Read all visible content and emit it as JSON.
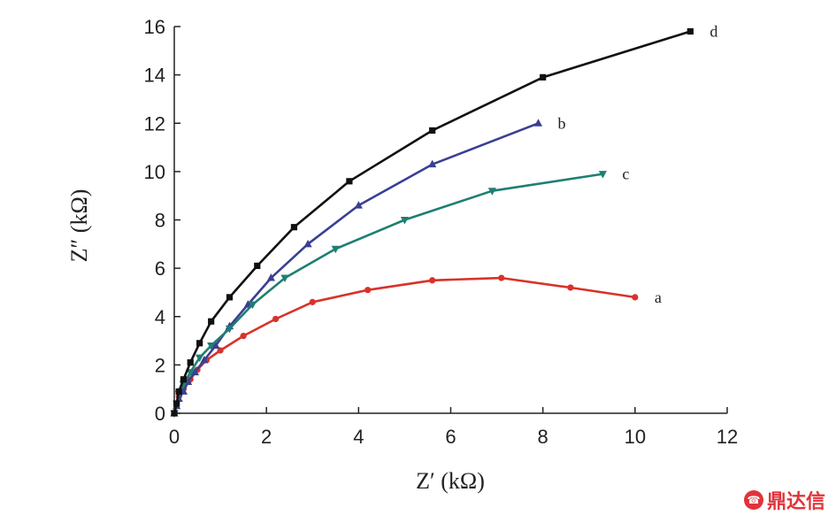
{
  "chart_data": {
    "type": "line",
    "xlabel": "Z′ (kΩ)",
    "ylabel": "Z″ (kΩ)",
    "xlim": [
      0,
      12
    ],
    "ylim": [
      0,
      16
    ],
    "xticks": [
      0,
      2,
      4,
      6,
      8,
      10,
      12
    ],
    "yticks": [
      0,
      2,
      4,
      6,
      8,
      10,
      12,
      14,
      16
    ],
    "grid": false,
    "series": [
      {
        "name": "a",
        "color": "#d8322a",
        "marker": "circle",
        "x": [
          0,
          0.05,
          0.1,
          0.2,
          0.35,
          0.5,
          0.7,
          1.0,
          1.5,
          2.2,
          3.0,
          4.2,
          5.6,
          7.1,
          8.6,
          10.0
        ],
        "y": [
          0,
          0.4,
          0.7,
          1.0,
          1.4,
          1.8,
          2.2,
          2.6,
          3.2,
          3.9,
          4.6,
          5.1,
          5.5,
          5.6,
          5.2,
          4.8
        ]
      },
      {
        "name": "b",
        "color": "#3a3f93",
        "marker": "triangle-up",
        "x": [
          0,
          0.05,
          0.1,
          0.2,
          0.3,
          0.45,
          0.65,
          0.9,
          1.2,
          1.6,
          2.1,
          2.9,
          4.0,
          5.6,
          7.9
        ],
        "y": [
          0,
          0.3,
          0.6,
          0.9,
          1.3,
          1.7,
          2.2,
          2.8,
          3.6,
          4.5,
          5.6,
          7.0,
          8.6,
          10.3,
          12.0
        ]
      },
      {
        "name": "c",
        "color": "#1e7f72",
        "marker": "triangle-down",
        "x": [
          0,
          0.05,
          0.1,
          0.2,
          0.35,
          0.55,
          0.8,
          1.2,
          1.7,
          2.4,
          3.5,
          5.0,
          6.9,
          9.3
        ],
        "y": [
          0,
          0.4,
          0.8,
          1.2,
          1.7,
          2.3,
          2.8,
          3.5,
          4.5,
          5.6,
          6.8,
          8.0,
          9.2,
          9.9
        ]
      },
      {
        "name": "d",
        "color": "#111111",
        "marker": "square",
        "x": [
          0,
          0.05,
          0.1,
          0.2,
          0.35,
          0.55,
          0.8,
          1.2,
          1.8,
          2.6,
          3.8,
          5.6,
          8.0,
          11.2
        ],
        "y": [
          0,
          0.4,
          0.9,
          1.4,
          2.1,
          2.9,
          3.8,
          4.8,
          6.1,
          7.7,
          9.6,
          11.7,
          13.9,
          15.8
        ]
      }
    ]
  },
  "watermark": {
    "text": "鼎达信",
    "icon_text": "☎"
  }
}
